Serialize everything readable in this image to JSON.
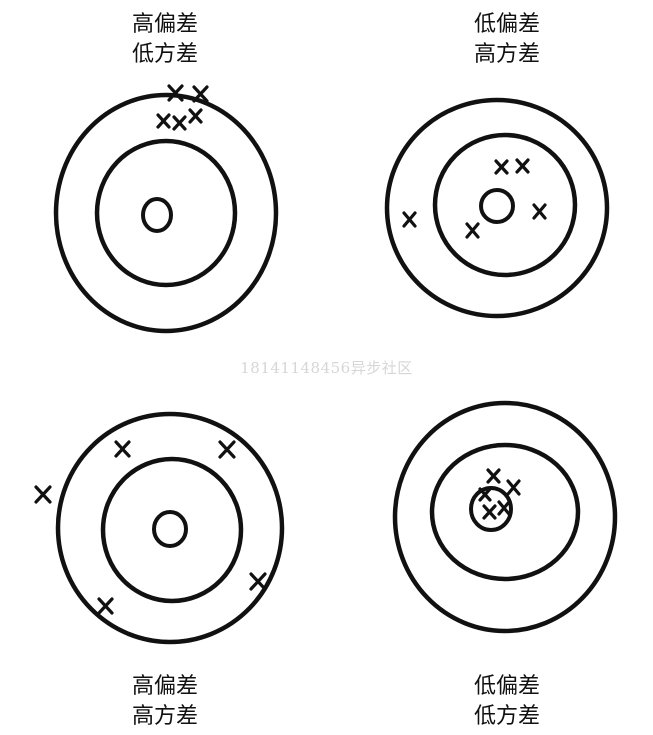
{
  "panels": [
    {
      "id": "top-left",
      "bias_label": "高偏差",
      "variance_label": "低方差",
      "hit_count": 5
    },
    {
      "id": "top-right",
      "bias_label": "低偏差",
      "variance_label": "高方差",
      "hit_count": 5
    },
    {
      "id": "bottom-left",
      "bias_label": "高偏差",
      "variance_label": "高方差",
      "hit_count": 5
    },
    {
      "id": "bottom-right",
      "bias_label": "低偏差",
      "variance_label": "低方差",
      "hit_count": 5
    }
  ],
  "watermark": "18141148456异步社区",
  "colors": {
    "ink": "#111111",
    "watermark": "#d6d6d6"
  }
}
